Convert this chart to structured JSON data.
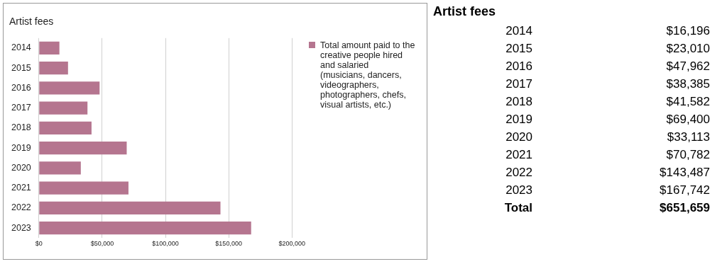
{
  "chart_data": {
    "type": "bar",
    "orientation": "horizontal",
    "title": "Artist fees",
    "categories": [
      "2014",
      "2015",
      "2016",
      "2017",
      "2018",
      "2019",
      "2020",
      "2021",
      "2022",
      "2023"
    ],
    "series": [
      {
        "name": "Total amount paid to the creative people hired and salaried (musicians, dancers, videographers, photographers, chefs, visual artists, etc.)",
        "color": "#b5758f",
        "values": [
          16196,
          23010,
          47962,
          38385,
          41582,
          69400,
          33113,
          70782,
          143487,
          167742
        ]
      }
    ],
    "value_labels": [
      "$16,196",
      "$23,010",
      "$47,962",
      "$38,385",
      "$41,582",
      "$69,400",
      "$33,113",
      "$70,782",
      "$143,487",
      "$167,742"
    ],
    "xlim": [
      0,
      200000
    ],
    "xticks": [
      {
        "value": 0,
        "label": "$0"
      },
      {
        "value": 50000,
        "label": "$50,000"
      },
      {
        "value": 100000,
        "label": "$100,000"
      },
      {
        "value": 150000,
        "label": "$150,000"
      },
      {
        "value": 200000,
        "label": "$200,000"
      }
    ],
    "grid": "x",
    "legend": "right",
    "annotations": [
      "Artist fees",
      "Total",
      "$651,659"
    ]
  }
}
